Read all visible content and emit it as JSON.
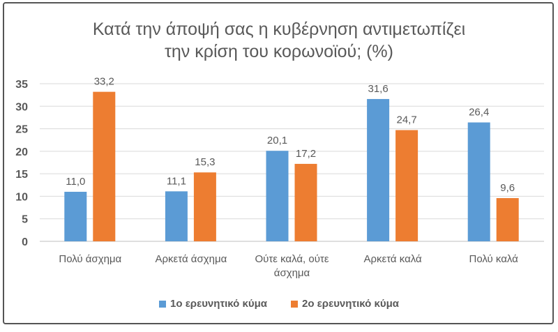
{
  "chart_data": {
    "type": "bar",
    "title_lines": [
      "Κατά την άποψή σας η κυβέρνηση αντιμετωπίζει",
      "την κρίση του κορωνοϊού; (%)"
    ],
    "categories": [
      [
        "Πολύ άσχημα"
      ],
      [
        "Αρκετά άσχημα"
      ],
      [
        "Ούτε καλά, ούτε",
        "άσχημα"
      ],
      [
        "Αρκετά καλά"
      ],
      [
        "Πολύ καλά"
      ]
    ],
    "series": [
      {
        "name": "1ο ερευνητικό κύμα",
        "color": "#5B9BD5",
        "values": [
          11.0,
          11.1,
          20.1,
          31.6,
          26.4
        ],
        "labels": [
          "11,0",
          "11,1",
          "20,1",
          "31,6",
          "26,4"
        ]
      },
      {
        "name": "2ο ερευνητικό κύμα",
        "color": "#ED7D31",
        "values": [
          33.2,
          15.3,
          17.2,
          24.7,
          9.6
        ],
        "labels": [
          "33,2",
          "15,3",
          "17,2",
          "24,7",
          "9,6"
        ]
      }
    ],
    "ylim": [
      0,
      35
    ],
    "yticks": [
      0,
      5,
      10,
      15,
      20,
      25,
      30,
      35
    ],
    "grid": true,
    "legend": "bottom"
  }
}
